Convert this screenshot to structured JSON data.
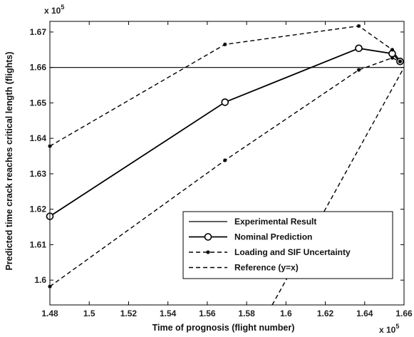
{
  "chart_data": {
    "type": "line",
    "xlabel": "Time of prognosis (flight number)",
    "ylabel": "Predicted time crack reaches critical length (flights)",
    "x_multiplier": "x 10",
    "y_multiplier": "x 10",
    "multiplier_exponent": "5",
    "xlim": [
      1.48,
      1.66
    ],
    "ylim": [
      1.593,
      1.673
    ],
    "xticks": [
      "1.48",
      "1.5",
      "1.52",
      "1.54",
      "1.56",
      "1.58",
      "1.6",
      "1.62",
      "1.64",
      "1.66"
    ],
    "yticks": [
      "1.6",
      "1.61",
      "1.62",
      "1.63",
      "1.64",
      "1.65",
      "1.66",
      "1.67"
    ],
    "grid": false,
    "legend_position": "bottom-right",
    "series": [
      {
        "name": "Experimental Result",
        "style": "solid",
        "marker": "none",
        "x": [
          1.48,
          1.66
        ],
        "y": [
          1.66,
          1.66
        ]
      },
      {
        "name": "Nominal Prediction",
        "style": "solid",
        "marker": "circle",
        "x": [
          1.48,
          1.569,
          1.637,
          1.654,
          1.658
        ],
        "y": [
          1.618,
          1.6502,
          1.6654,
          1.6639,
          1.6617
        ]
      },
      {
        "name": "Loading and SIF Uncertainty",
        "style": "dashed",
        "marker": "star",
        "x": [
          1.48,
          1.569,
          1.637,
          1.654,
          1.658
        ],
        "y": [
          1.6378,
          1.6665,
          1.6717,
          1.665,
          1.6617
        ]
      },
      {
        "name": "Loading and SIF Uncertainty",
        "style": "dashed",
        "marker": "star",
        "show_in_legend": false,
        "x": [
          1.48,
          1.569,
          1.637,
          1.654,
          1.658
        ],
        "y": [
          1.5982,
          1.6338,
          1.6593,
          1.6627,
          1.6617
        ]
      },
      {
        "name": "Reference (y=x)",
        "style": "dashed",
        "marker": "none",
        "x": [
          1.593,
          1.66
        ],
        "y": [
          1.593,
          1.66
        ]
      }
    ]
  }
}
